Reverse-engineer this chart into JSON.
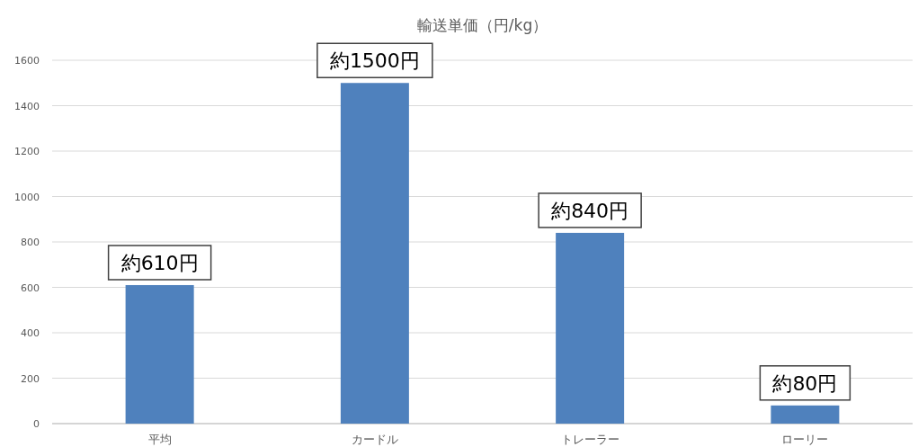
{
  "chart_data": {
    "type": "bar",
    "title": "輸送単価（円/kg）",
    "categories": [
      "平均",
      "カードル",
      "トレーラー",
      "ローリー"
    ],
    "values": [
      610,
      1500,
      840,
      80
    ],
    "value_labels": [
      "約610円",
      "約1500円",
      "約840円",
      "約80円"
    ],
    "color": "#4f81bd",
    "ylim": [
      0,
      1600
    ],
    "yticks": [
      0,
      200,
      400,
      600,
      800,
      1000,
      1200,
      1400,
      1600
    ],
    "grid": "y"
  }
}
